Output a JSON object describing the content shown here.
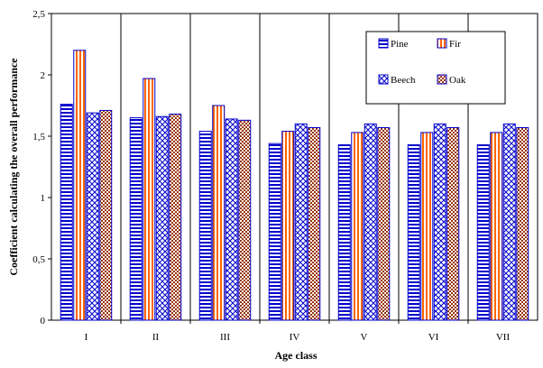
{
  "chart_data": {
    "type": "bar",
    "title": "",
    "xlabel": "Age class",
    "ylabel": "Coefficient calculating the overall performance",
    "categories": [
      "I",
      "II",
      "III",
      "IV",
      "V",
      "VI",
      "VII"
    ],
    "ylim": [
      0,
      2.5
    ],
    "yticks": [
      0,
      0.5,
      1,
      1.5,
      2,
      2.5
    ],
    "ytick_labels": [
      "0",
      "0,5",
      "1",
      "1,5",
      "2",
      "2,5"
    ],
    "grid": "vertical category separators",
    "legend_position": "top-right",
    "series": [
      {
        "name": "Pine",
        "values": [
          1.76,
          1.65,
          1.54,
          1.44,
          1.43,
          1.43,
          1.43
        ],
        "pattern": "horizontal-stripes",
        "color": "#0000cc"
      },
      {
        "name": "Fir",
        "values": [
          2.2,
          1.97,
          1.75,
          1.54,
          1.53,
          1.53,
          1.53
        ],
        "pattern": "vertical-stripes",
        "color": "#ff6600"
      },
      {
        "name": "Beech",
        "values": [
          1.69,
          1.66,
          1.64,
          1.6,
          1.6,
          1.6,
          1.6
        ],
        "pattern": "crosshatch",
        "color": "#0000cc"
      },
      {
        "name": "Oak",
        "values": [
          1.71,
          1.68,
          1.63,
          1.57,
          1.57,
          1.57,
          1.57
        ],
        "pattern": "checker",
        "color": "#993300"
      }
    ]
  }
}
